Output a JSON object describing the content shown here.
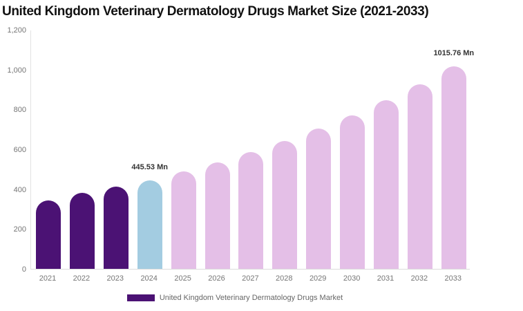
{
  "title": "United Kingdom Veterinary Dermatology Drugs Market Size (2021-2033)",
  "legend": {
    "label": "United Kingdom Veterinary Dermatology Drugs Market",
    "swatch_color": "#4b1274"
  },
  "colors": {
    "historical": "#4b1274",
    "current": "#a3cce1",
    "forecast": "#e4bfe7",
    "axis_line": "#e2e2e2",
    "axis_text": "#757575",
    "value_label_text": "#333333",
    "title_text": "#111111"
  },
  "chart_data": {
    "type": "bar",
    "title": "United Kingdom Veterinary Dermatology Drugs Market Size (2021-2033)",
    "xlabel": "",
    "ylabel": "",
    "ylim": [
      0,
      1200
    ],
    "grid": false,
    "legend_position": "bottom",
    "y_ticks": [
      {
        "value": 0,
        "label": "0"
      },
      {
        "value": 200,
        "label": "200"
      },
      {
        "value": 400,
        "label": "400"
      },
      {
        "value": 600,
        "label": "600"
      },
      {
        "value": 800,
        "label": "800"
      },
      {
        "value": 1000,
        "label": "1,000"
      },
      {
        "value": 1200,
        "label": "1,200"
      }
    ],
    "categories": [
      "2021",
      "2022",
      "2023",
      "2024",
      "2025",
      "2026",
      "2027",
      "2028",
      "2029",
      "2030",
      "2031",
      "2032",
      "2033"
    ],
    "points": [
      {
        "year": "2021",
        "value": 342,
        "segment": "historical",
        "label": ""
      },
      {
        "year": "2022",
        "value": 380,
        "segment": "historical",
        "label": ""
      },
      {
        "year": "2023",
        "value": 413,
        "segment": "historical",
        "label": ""
      },
      {
        "year": "2024",
        "value": 445.53,
        "segment": "current",
        "label": "445.53 Mn"
      },
      {
        "year": "2025",
        "value": 488,
        "segment": "forecast",
        "label": ""
      },
      {
        "year": "2026",
        "value": 535,
        "segment": "forecast",
        "label": ""
      },
      {
        "year": "2027",
        "value": 586,
        "segment": "forecast",
        "label": ""
      },
      {
        "year": "2028",
        "value": 642,
        "segment": "forecast",
        "label": ""
      },
      {
        "year": "2029",
        "value": 704,
        "segment": "forecast",
        "label": ""
      },
      {
        "year": "2030",
        "value": 771,
        "segment": "forecast",
        "label": ""
      },
      {
        "year": "2031",
        "value": 845,
        "segment": "forecast",
        "label": ""
      },
      {
        "year": "2032",
        "value": 926,
        "segment": "forecast",
        "label": ""
      },
      {
        "year": "2033",
        "value": 1015.76,
        "segment": "forecast",
        "label": "1015.76 Mn"
      }
    ]
  }
}
